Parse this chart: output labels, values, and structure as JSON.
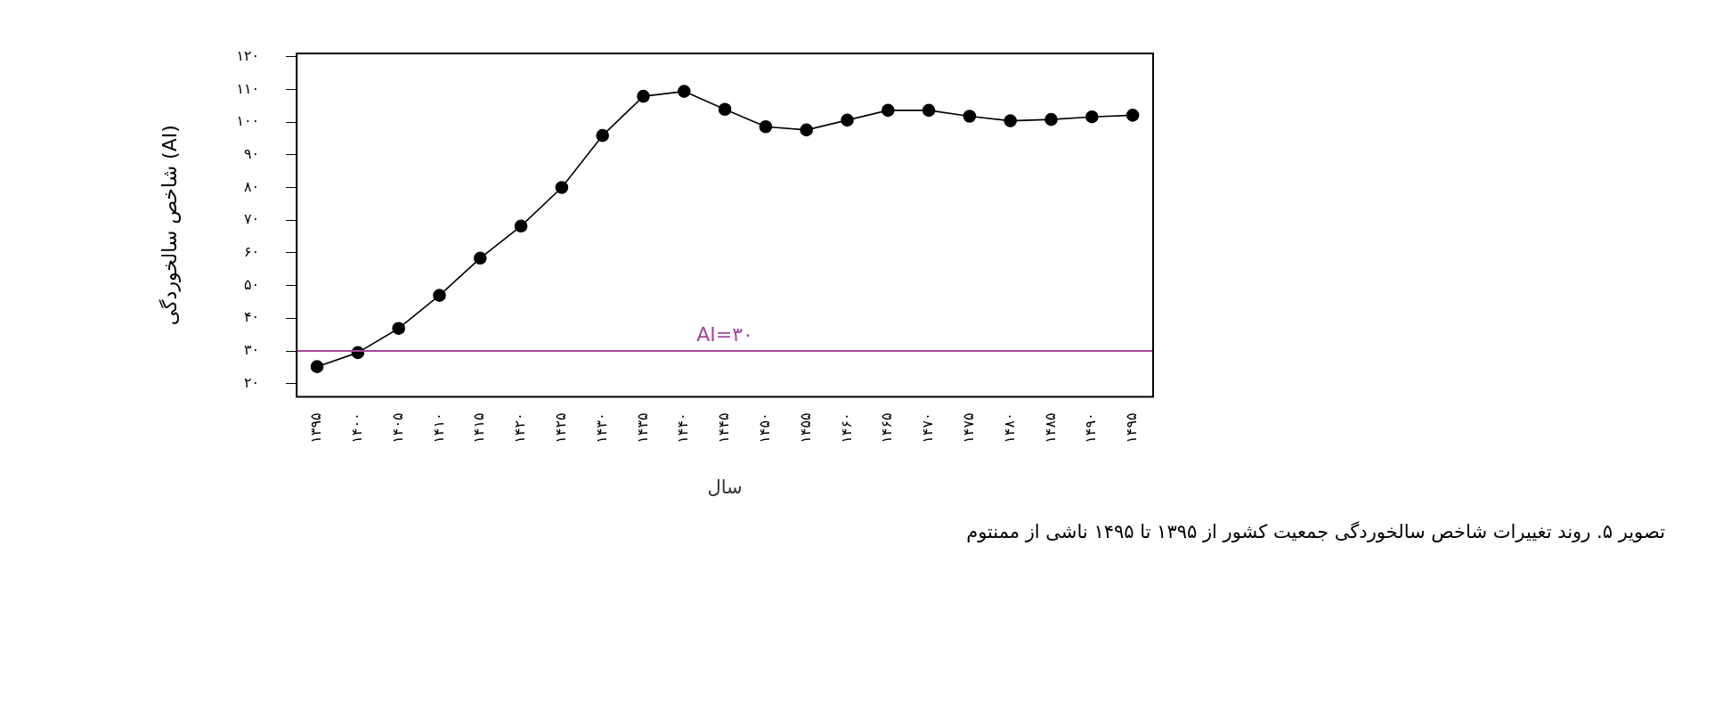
{
  "chart_data": {
    "type": "line",
    "categories": [
      "۱۳۹۵",
      "۱۴۰۰",
      "۱۴۰۵",
      "۱۴۱۰",
      "۱۴۱۵",
      "۱۴۲۰",
      "۱۴۲۵",
      "۱۴۳۰",
      "۱۴۳۵",
      "۱۴۴۰",
      "۱۴۴۵",
      "۱۴۵۰",
      "۱۴۵۵",
      "۱۴۶۰",
      "۱۴۶۵",
      "۱۴۷۰",
      "۱۴۷۵",
      "۱۴۸۰",
      "۱۴۸۵",
      "۱۴۹۰",
      "۱۴۹۵"
    ],
    "series": [
      {
        "color": "#000000",
        "values": [
          25.2,
          29.5,
          36.9,
          47.0,
          58.4,
          68.2,
          80.0,
          95.9,
          107.9,
          109.4,
          103.9,
          98.6,
          97.6,
          100.6,
          103.6,
          103.6,
          101.8,
          100.4,
          100.8,
          101.6,
          102.1
        ]
      }
    ],
    "xlabel": "سال",
    "ylabel": "شاخص سالخوردگی (AI)",
    "ylim": [
      16,
      121
    ],
    "yticks": [
      {
        "value": 20,
        "label": "۲۰"
      },
      {
        "value": 30,
        "label": "۳۰"
      },
      {
        "value": 40,
        "label": "۴۰"
      },
      {
        "value": 50,
        "label": "۵۰"
      },
      {
        "value": 60,
        "label": "۶۰"
      },
      {
        "value": 70,
        "label": "۷۰"
      },
      {
        "value": 80,
        "label": "۸۰"
      },
      {
        "value": 90,
        "label": "۹۰"
      },
      {
        "value": 100,
        "label": "۱۰۰"
      },
      {
        "value": 110,
        "label": "۱۱۰"
      },
      {
        "value": 120,
        "label": "۱۲۰"
      }
    ],
    "ref_lines": [
      {
        "axis": "y",
        "value": 30,
        "label": "AI=۳۰",
        "color": "#a4479c"
      }
    ],
    "annotations": [
      "تصویر ۵. روند تغییرات شاخص سالخوردگی جمعیت کشور از ۱۳۹۵ تا ۱۴۹۵ ناشی از ممنتوم"
    ],
    "grid": false,
    "legend": false,
    "marker": "circle",
    "line_style": "solid"
  }
}
